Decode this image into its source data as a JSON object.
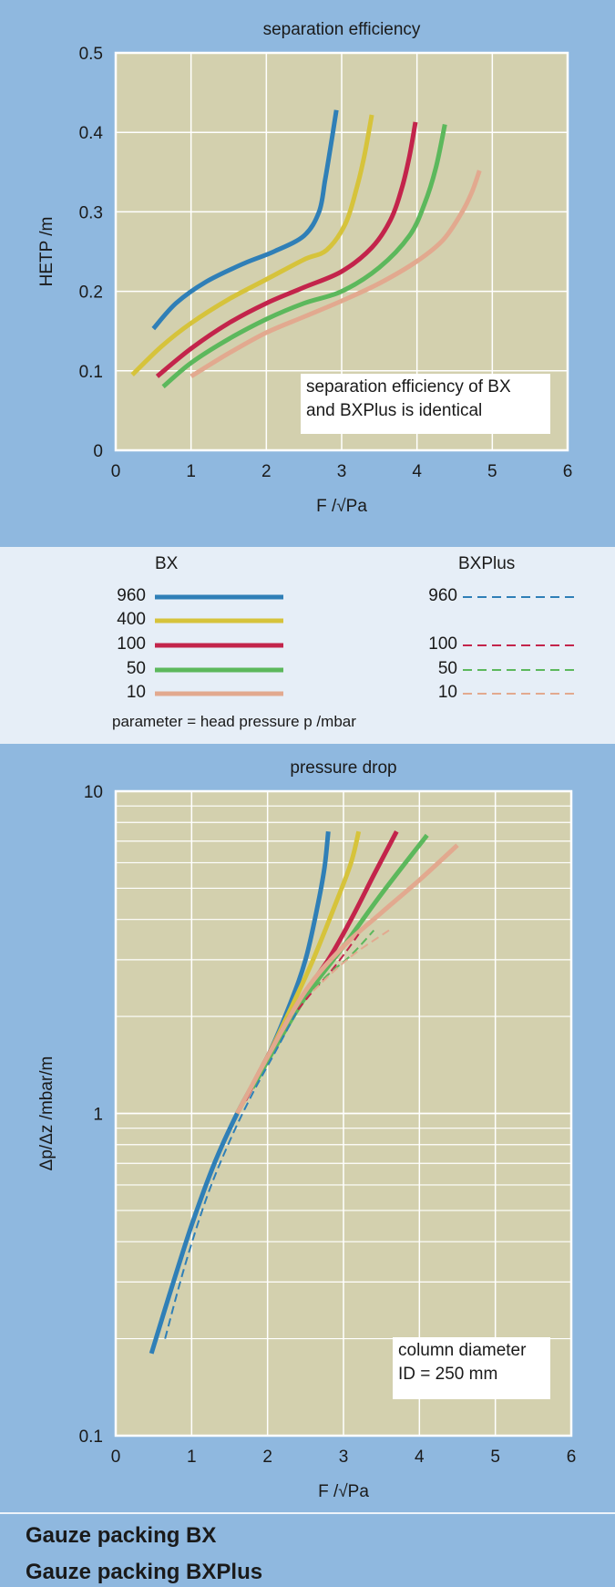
{
  "chart_data": [
    {
      "type": "line",
      "title": "separation efficiency",
      "xlabel": "F /√Pa",
      "ylabel": "HETP /m",
      "xlim": [
        0,
        6
      ],
      "ylim": [
        0,
        0.5
      ],
      "xticks": [
        "0",
        "1",
        "2",
        "3",
        "4",
        "5",
        "6"
      ],
      "yticks": [
        "0",
        "0.1",
        "0.2",
        "0.3",
        "0.4",
        "0.5"
      ],
      "grid": true,
      "annotation": "separation efficiency of BX and BXPlus is identical",
      "annotation_lines": [
        "separation efficiency of BX",
        "and BXPlus is identical"
      ],
      "series": [
        {
          "name": "960",
          "color": "#2f7fb7",
          "style": "solid",
          "x": [
            0.5,
            0.8,
            1.2,
            1.7,
            2.1,
            2.5,
            2.7,
            2.78,
            2.85,
            2.93
          ],
          "y": [
            0.153,
            0.185,
            0.212,
            0.235,
            0.25,
            0.27,
            0.3,
            0.34,
            0.38,
            0.428
          ]
        },
        {
          "name": "400",
          "color": "#d6c33b",
          "style": "solid",
          "x": [
            0.22,
            0.6,
            1.0,
            1.5,
            2.0,
            2.5,
            2.8,
            3.05,
            3.2,
            3.3,
            3.4
          ],
          "y": [
            0.095,
            0.13,
            0.16,
            0.19,
            0.215,
            0.24,
            0.252,
            0.285,
            0.33,
            0.37,
            0.422
          ]
        },
        {
          "name": "100",
          "color": "#c3244b",
          "style": "solid",
          "x": [
            0.55,
            1.0,
            1.5,
            2.0,
            2.5,
            3.0,
            3.4,
            3.65,
            3.8,
            3.9,
            3.98
          ],
          "y": [
            0.093,
            0.128,
            0.16,
            0.185,
            0.205,
            0.225,
            0.255,
            0.29,
            0.33,
            0.37,
            0.413
          ]
        },
        {
          "name": "50",
          "color": "#5cb85c",
          "style": "solid",
          "x": [
            0.63,
            1.0,
            1.5,
            2.0,
            2.5,
            3.0,
            3.5,
            3.9,
            4.1,
            4.25,
            4.37
          ],
          "y": [
            0.08,
            0.11,
            0.14,
            0.165,
            0.185,
            0.2,
            0.23,
            0.27,
            0.31,
            0.355,
            0.41
          ]
        },
        {
          "name": "10",
          "color": "#e2a98f",
          "style": "solid",
          "x": [
            1.0,
            1.5,
            2.0,
            2.5,
            3.0,
            3.5,
            4.0,
            4.35,
            4.6,
            4.73,
            4.83
          ],
          "y": [
            0.093,
            0.122,
            0.148,
            0.168,
            0.188,
            0.21,
            0.238,
            0.265,
            0.3,
            0.325,
            0.352
          ]
        }
      ]
    },
    {
      "type": "line",
      "title": "pressure drop",
      "xlabel": "F /√Pa",
      "ylabel": "Δp/Δz /mbar/m",
      "xlim": [
        0,
        6
      ],
      "ylim": [
        0.1,
        10
      ],
      "yscale": "log",
      "xticks": [
        "0",
        "1",
        "2",
        "3",
        "4",
        "5",
        "6"
      ],
      "yticks": [
        "0.1",
        "1",
        "10"
      ],
      "grid": true,
      "annotation": "column diameter ID = 250 mm",
      "annotation_lines": [
        "column diameter",
        "ID = 250 mm"
      ],
      "series": [
        {
          "name": "BX 960",
          "color": "#2f7fb7",
          "style": "solid",
          "x": [
            0.47,
            0.7,
            1.0,
            1.3,
            1.6,
            2.0,
            2.3,
            2.5,
            2.65,
            2.75,
            2.8
          ],
          "y": [
            0.18,
            0.27,
            0.45,
            0.7,
            1.0,
            1.5,
            2.2,
            3.0,
            4.3,
            5.8,
            7.5
          ]
        },
        {
          "name": "BX 400",
          "color": "#d6c33b",
          "style": "solid",
          "x": [
            1.6,
            2.0,
            2.3,
            2.6,
            2.9,
            3.1,
            3.2
          ],
          "y": [
            1.0,
            1.5,
            2.1,
            3.0,
            4.5,
            6.0,
            7.5
          ]
        },
        {
          "name": "BX 100",
          "color": "#c3244b",
          "style": "solid",
          "x": [
            1.7,
            2.0,
            2.4,
            2.8,
            3.1,
            3.4,
            3.7
          ],
          "y": [
            1.1,
            1.5,
            2.2,
            3.0,
            4.0,
            5.5,
            7.5
          ]
        },
        {
          "name": "BX 50",
          "color": "#5cb85c",
          "style": "solid",
          "x": [
            1.8,
            2.1,
            2.5,
            3.0,
            3.5,
            4.1
          ],
          "y": [
            1.2,
            1.6,
            2.3,
            3.3,
            4.8,
            7.3
          ]
        },
        {
          "name": "BX 10",
          "color": "#e2a98f",
          "style": "solid",
          "x": [
            1.6,
            2.0,
            2.5,
            3.0,
            3.5,
            4.0,
            4.5
          ],
          "y": [
            1.0,
            1.5,
            2.4,
            3.3,
            4.2,
            5.3,
            6.8
          ]
        },
        {
          "name": "BXPlus 960",
          "color": "#2f7fb7",
          "style": "dashed",
          "x": [
            0.65,
            0.9,
            1.2,
            1.5,
            1.8,
            2.1,
            2.4
          ],
          "y": [
            0.2,
            0.33,
            0.55,
            0.82,
            1.15,
            1.55,
            2.1
          ]
        },
        {
          "name": "BXPlus 100",
          "color": "#c3244b",
          "style": "dashed",
          "x": [
            2.4,
            2.6,
            2.8,
            3.0,
            3.2
          ],
          "y": [
            2.1,
            2.4,
            2.7,
            3.1,
            3.6
          ]
        },
        {
          "name": "BXPlus 50",
          "color": "#5cb85c",
          "style": "dashed",
          "x": [
            2.5,
            2.8,
            3.1,
            3.4
          ],
          "y": [
            2.3,
            2.7,
            3.1,
            3.7
          ]
        },
        {
          "name": "BXPlus 10",
          "color": "#e2a98f",
          "style": "dashed",
          "x": [
            2.6,
            2.9,
            3.2,
            3.6
          ],
          "y": [
            2.4,
            2.8,
            3.2,
            3.7
          ]
        }
      ]
    }
  ],
  "legend": {
    "bx_title": "BX",
    "bxplus_title": "BXPlus",
    "bx_entries": [
      {
        "label": "960",
        "color": "#2f7fb7"
      },
      {
        "label": "400",
        "color": "#d6c33b"
      },
      {
        "label": "100",
        "color": "#c3244b"
      },
      {
        "label": "50",
        "color": "#5cb85c"
      },
      {
        "label": "10",
        "color": "#e2a98f"
      }
    ],
    "bxplus_entries": [
      {
        "label": "960",
        "color": "#2f7fb7"
      },
      {
        "label": "100",
        "color": "#c3244b"
      },
      {
        "label": "50",
        "color": "#5cb85c"
      },
      {
        "label": "10",
        "color": "#e2a98f"
      }
    ],
    "note": "parameter = head pressure p /mbar"
  },
  "footer": {
    "line1": "Gauze packing BX",
    "line2": "Gauze packing BXPlus"
  },
  "colors": {
    "plot_bg": "#d3d0ae",
    "panel_bg": "#8fb8df",
    "legend_bg": "#e6eef7",
    "grid": "#ffffff"
  }
}
